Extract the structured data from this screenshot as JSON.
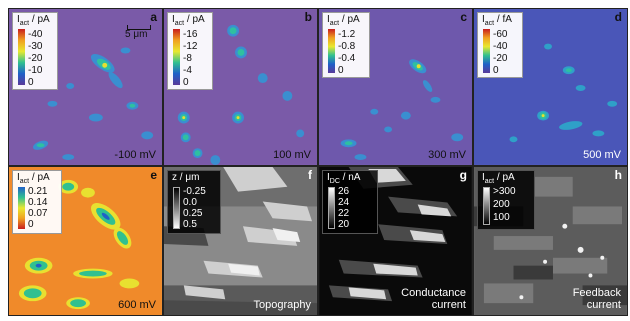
{
  "panels": {
    "a": {
      "letter": "a",
      "legend_title": "I",
      "legend_sub": "act",
      "legend_unit": " / pA",
      "ticks": [
        "-40",
        "-30",
        "-20",
        "-10",
        "0"
      ],
      "caption": "-100 mV",
      "scale_bar": "5 μm"
    },
    "b": {
      "letter": "b",
      "legend_title": "I",
      "legend_sub": "act",
      "legend_unit": " / pA",
      "ticks": [
        "-16",
        "-12",
        "-8",
        "-4",
        "0"
      ],
      "caption": "100 mV"
    },
    "c": {
      "letter": "c",
      "legend_title": "I",
      "legend_sub": "act",
      "legend_unit": " / pA",
      "ticks": [
        "-1.2",
        "-0.8",
        "-0.4",
        "0"
      ],
      "caption": "300 mV"
    },
    "d": {
      "letter": "d",
      "legend_title": "I",
      "legend_sub": "act",
      "legend_unit": " / fA",
      "ticks": [
        "-60",
        "-40",
        "-20",
        "0"
      ],
      "caption": "500 mV"
    },
    "e": {
      "letter": "e",
      "legend_title": "I",
      "legend_sub": "act",
      "legend_unit": " / pA",
      "ticks": [
        "0.21",
        "0.14",
        "0.07",
        "0"
      ],
      "caption": "600 mV"
    },
    "f": {
      "letter": "f",
      "legend_title": "z",
      "legend_sub": "",
      "legend_unit": " / μm",
      "ticks": [
        "-0.25",
        "0.0",
        "0.25",
        "0.5"
      ],
      "caption": "Topography"
    },
    "g": {
      "letter": "g",
      "legend_title": "I",
      "legend_sub": "DC",
      "legend_unit": " / nA",
      "ticks": [
        "26",
        "24",
        "22",
        "20"
      ],
      "caption_line1": "Conductance",
      "caption_line2": "current"
    },
    "h": {
      "letter": "h",
      "legend_title": "I",
      "legend_sub": "act",
      "legend_unit": " / pA",
      "ticks": [
        ">300",
        "200",
        "100"
      ],
      "caption_line1": "Feedback",
      "caption_line2": "current"
    }
  },
  "colors": {
    "purple_bg": "#7a5aa8",
    "blue_bg": "#4a56b8",
    "orange_bg": "#f08a2a",
    "spot_outer": "#3a8fd0",
    "spot_mid": "#2fc0a0",
    "spot_core": "#e6e030",
    "rainbow_stops": [
      "#c81d1d",
      "#f0a020",
      "#e8e830",
      "#30c090",
      "#2060c8",
      "#5a3a9a"
    ]
  }
}
